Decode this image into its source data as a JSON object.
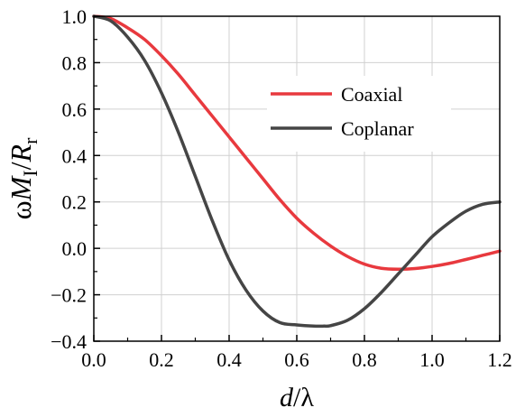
{
  "chart_data": {
    "type": "line",
    "xlim": [
      0.0,
      1.2
    ],
    "ylim": [
      -0.4,
      1.0
    ],
    "grid": true,
    "legend_position": "upper-right",
    "x_ticks": [
      "0.0",
      "0.2",
      "0.4",
      "0.6",
      "0.8",
      "1.0",
      "1.2"
    ],
    "y_ticks": [
      "−0.4",
      "−0.2",
      "0.0",
      "0.2",
      "0.4",
      "0.6",
      "0.8",
      "1.0"
    ],
    "xlabel": {
      "main": "d",
      "suffix": "/λ"
    },
    "ylabel": {
      "prefix": "ω",
      "m": "M",
      "m_sub": "I",
      "slash": "/",
      "r": "R",
      "r_sub": "r"
    },
    "series": [
      {
        "name": "Coaxial",
        "color": "#e8393e",
        "x": [
          0.0,
          0.05,
          0.1,
          0.15,
          0.2,
          0.25,
          0.3,
          0.35,
          0.4,
          0.45,
          0.5,
          0.55,
          0.6,
          0.65,
          0.7,
          0.75,
          0.8,
          0.85,
          0.9,
          0.95,
          1.0,
          1.05,
          1.1,
          1.15,
          1.2
        ],
        "y": [
          1.0,
          0.99,
          0.95,
          0.9,
          0.83,
          0.75,
          0.66,
          0.57,
          0.48,
          0.39,
          0.3,
          0.21,
          0.13,
          0.065,
          0.01,
          -0.035,
          -0.068,
          -0.086,
          -0.09,
          -0.087,
          -0.078,
          -0.065,
          -0.048,
          -0.03,
          -0.012
        ]
      },
      {
        "name": "Coplanar",
        "color": "#454545",
        "x": [
          0.0,
          0.05,
          0.1,
          0.15,
          0.2,
          0.25,
          0.3,
          0.35,
          0.4,
          0.45,
          0.5,
          0.55,
          0.6,
          0.65,
          0.68,
          0.7,
          0.75,
          0.8,
          0.85,
          0.9,
          0.95,
          1.0,
          1.05,
          1.1,
          1.15,
          1.2
        ],
        "y": [
          1.0,
          0.98,
          0.91,
          0.81,
          0.67,
          0.5,
          0.31,
          0.12,
          -0.05,
          -0.18,
          -0.27,
          -0.32,
          -0.33,
          -0.335,
          -0.335,
          -0.333,
          -0.31,
          -0.26,
          -0.19,
          -0.11,
          -0.03,
          0.05,
          0.11,
          0.16,
          0.19,
          0.2
        ]
      }
    ]
  }
}
